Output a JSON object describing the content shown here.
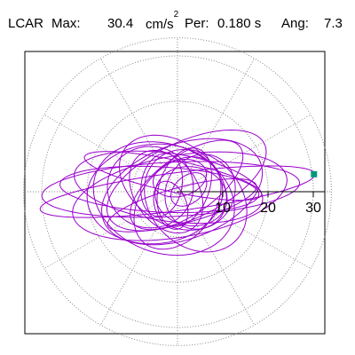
{
  "header": {
    "component": "LCAR",
    "max_label": "Max:",
    "max_value": "30.4",
    "max_unit": "cm/s",
    "max_unit_exp": "2",
    "per_label": "Per:",
    "per_value": "0.180 s",
    "ang_label": "Ang:",
    "ang_value": "7.3"
  },
  "chart_data": {
    "type": "polar-hodogram",
    "title": "",
    "radial_range": [
      0,
      34
    ],
    "tick_values": [
      10,
      20,
      30
    ],
    "tick_labels": [
      "10",
      "20",
      "30"
    ],
    "angular_grid_deg": [
      0,
      30,
      60,
      90,
      120,
      150,
      180,
      210,
      240,
      270,
      300,
      330
    ],
    "radial_grid_circles": [
      10,
      20,
      30
    ],
    "grid": true,
    "peak": {
      "radius": 30.4,
      "angle_deg": 7.3
    },
    "series": [
      {
        "color": "#9900cc",
        "ellipses": [
          {
            "a": 30.6,
            "b": 4.2,
            "rot": 7.3,
            "cx": 0,
            "cy": 0
          },
          {
            "a": 28.5,
            "b": 6.0,
            "rot": 3.0,
            "cx": -1.5,
            "cy": 0.5
          },
          {
            "a": 24.0,
            "b": 9.0,
            "rot": 10.0,
            "cx": 0.5,
            "cy": -1.0
          },
          {
            "a": 21.0,
            "b": 7.5,
            "rot": -8.0,
            "cx": -2.0,
            "cy": 1.0
          },
          {
            "a": 18.5,
            "b": 10.5,
            "rot": 20.0,
            "cx": 1.0,
            "cy": 0.0
          },
          {
            "a": 16.0,
            "b": 12.0,
            "rot": -20.0,
            "cx": -3.0,
            "cy": -1.5
          },
          {
            "a": 14.5,
            "b": 6.5,
            "rot": 35.0,
            "cx": 2.0,
            "cy": 1.5
          },
          {
            "a": 13.0,
            "b": 9.0,
            "rot": -35.0,
            "cx": -1.0,
            "cy": 2.0
          },
          {
            "a": 11.5,
            "b": 8.0,
            "rot": 50.0,
            "cx": 0.0,
            "cy": -2.5
          },
          {
            "a": 10.0,
            "b": 7.0,
            "rot": -55.0,
            "cx": -2.5,
            "cy": 0.0
          },
          {
            "a": 9.0,
            "b": 5.5,
            "rot": 70.0,
            "cx": 1.5,
            "cy": 1.0
          },
          {
            "a": 8.0,
            "b": 6.5,
            "rot": -10.0,
            "cx": 3.0,
            "cy": -1.0
          },
          {
            "a": 7.0,
            "b": 4.5,
            "rot": 80.0,
            "cx": -3.5,
            "cy": 1.5
          },
          {
            "a": 6.0,
            "b": 4.0,
            "rot": 15.0,
            "cx": 0.5,
            "cy": 3.0
          },
          {
            "a": 5.5,
            "b": 3.5,
            "rot": -70.0,
            "cx": -1.5,
            "cy": -3.0
          },
          {
            "a": 4.5,
            "b": 3.0,
            "rot": 40.0,
            "cx": 2.5,
            "cy": 0.5
          },
          {
            "a": 22.0,
            "b": 5.0,
            "rot": -3.0,
            "cx": -4.0,
            "cy": 0.5
          },
          {
            "a": 19.0,
            "b": 8.5,
            "rot": 25.0,
            "cx": 2.0,
            "cy": 2.5
          },
          {
            "a": 15.0,
            "b": 11.0,
            "rot": 5.0,
            "cx": -5.0,
            "cy": -0.5
          },
          {
            "a": 12.5,
            "b": 10.0,
            "rot": -45.0,
            "cx": 4.0,
            "cy": -2.0
          },
          {
            "a": 17.0,
            "b": 4.0,
            "rot": 15.0,
            "cx": 1.0,
            "cy": -3.0
          },
          {
            "a": 20.0,
            "b": 3.5,
            "rot": -12.0,
            "cx": -1.0,
            "cy": 3.5
          },
          {
            "a": 9.5,
            "b": 9.0,
            "rot": 0.0,
            "cx": -6.0,
            "cy": 1.0
          },
          {
            "a": 8.5,
            "b": 7.5,
            "rot": 60.0,
            "cx": 5.0,
            "cy": 0.0
          }
        ]
      }
    ]
  }
}
